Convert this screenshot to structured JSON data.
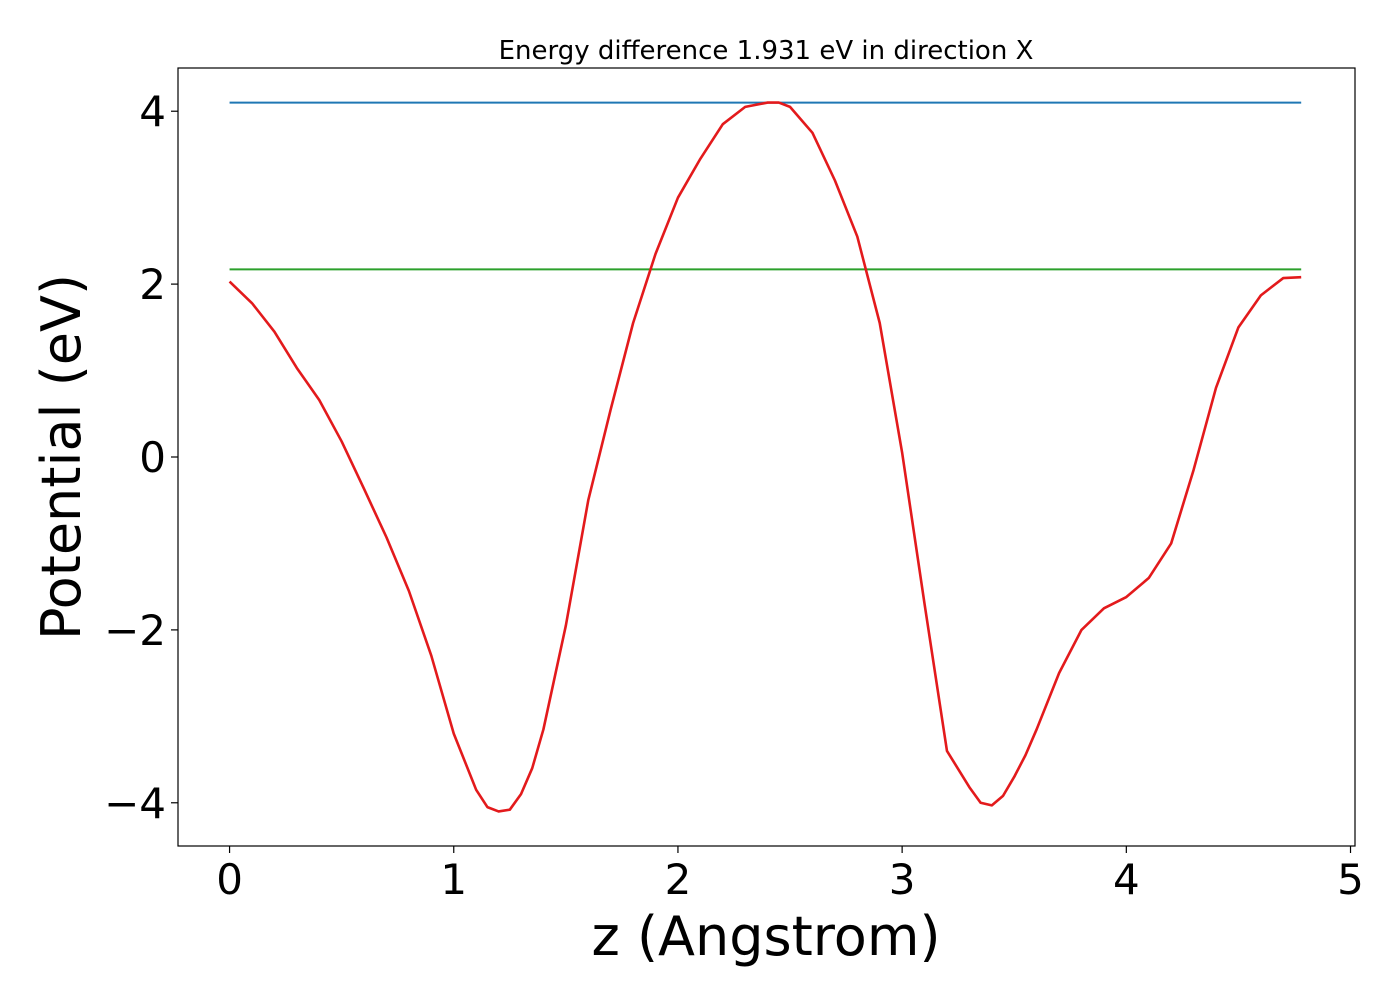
{
  "chart_data": {
    "type": "line",
    "title": "Energy difference 1.931 eV in direction X",
    "xlabel": "z (Angstrom)",
    "ylabel": "Potential (eV)",
    "xlim": [
      -0.23,
      5.02
    ],
    "ylim": [
      -4.5,
      4.5
    ],
    "xticks": [
      0,
      1,
      2,
      3,
      4,
      5
    ],
    "xtick_labels": [
      "0",
      "1",
      "2",
      "3",
      "4",
      "5"
    ],
    "yticks": [
      -4,
      -2,
      0,
      2,
      4
    ],
    "ytick_labels": [
      "−4",
      "−2",
      "0",
      "2",
      "4"
    ],
    "grid": false,
    "series": [
      {
        "color": "#1f77b4",
        "x": [
          0,
          4.78
        ],
        "y": [
          4.1,
          4.1
        ]
      },
      {
        "color": "#2ca02c",
        "x": [
          0,
          4.78
        ],
        "y": [
          2.17,
          2.17
        ]
      },
      {
        "color": "#e31a1c",
        "x": [
          0,
          0.1,
          0.2,
          0.3,
          0.4,
          0.5,
          0.6,
          0.7,
          0.8,
          0.9,
          1.0,
          1.1,
          1.15,
          1.2,
          1.25,
          1.3,
          1.35,
          1.4,
          1.5,
          1.6,
          1.7,
          1.8,
          1.9,
          2.0,
          2.1,
          2.2,
          2.3,
          2.4,
          2.45,
          2.5,
          2.6,
          2.7,
          2.8,
          2.9,
          3.0,
          3.1,
          3.2,
          3.3,
          3.35,
          3.4,
          3.45,
          3.5,
          3.55,
          3.6,
          3.7,
          3.8,
          3.9,
          4.0,
          4.1,
          4.2,
          4.3,
          4.4,
          4.5,
          4.6,
          4.7,
          4.78
        ],
        "y": [
          2.03,
          1.78,
          1.45,
          1.03,
          0.66,
          0.18,
          -0.37,
          -0.93,
          -1.55,
          -2.3,
          -3.2,
          -3.85,
          -4.05,
          -4.1,
          -4.08,
          -3.9,
          -3.6,
          -3.15,
          -1.95,
          -0.5,
          0.55,
          1.55,
          2.35,
          3.0,
          3.45,
          3.85,
          4.05,
          4.1,
          4.1,
          4.05,
          3.75,
          3.2,
          2.55,
          1.55,
          0.05,
          -1.7,
          -3.4,
          -3.82,
          -4.0,
          -4.03,
          -3.92,
          -3.7,
          -3.45,
          -3.15,
          -2.5,
          -2.0,
          -1.75,
          -1.62,
          -1.4,
          -1.0,
          -0.15,
          0.8,
          1.5,
          1.87,
          2.07,
          2.08
        ]
      }
    ]
  }
}
